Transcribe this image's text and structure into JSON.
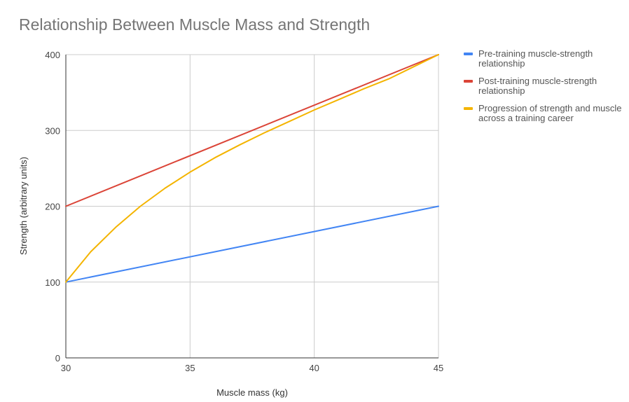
{
  "chart_data": {
    "type": "line",
    "title": "Relationship Between Muscle Mass and Strength",
    "xlabel": "Muscle mass (kg)",
    "ylabel": "Strength (arbitrary units)",
    "xlim": [
      30,
      45
    ],
    "ylim": [
      0,
      400
    ],
    "x_ticks": [
      30,
      35,
      40,
      45
    ],
    "y_ticks": [
      0,
      100,
      200,
      300,
      400
    ],
    "grid": true,
    "legend_position": "right",
    "series": [
      {
        "name": "Pre-training muscle-strength relationship",
        "color": "#4285f4",
        "x": [
          30,
          45
        ],
        "values": [
          100,
          200
        ]
      },
      {
        "name": "Post-training muscle-strength relationship",
        "color": "#db4437",
        "x": [
          30,
          45
        ],
        "values": [
          200,
          400
        ]
      },
      {
        "name": "Progression of strength and muscle across a training career",
        "color": "#f4b400",
        "x": [
          30,
          31,
          32,
          33,
          34,
          35,
          36,
          37,
          38,
          39,
          40,
          41,
          42,
          43,
          44,
          45
        ],
        "values": [
          100,
          140,
          172,
          200,
          224,
          245,
          264,
          281,
          297,
          312,
          327,
          341,
          355,
          368,
          384,
          400
        ]
      }
    ]
  }
}
